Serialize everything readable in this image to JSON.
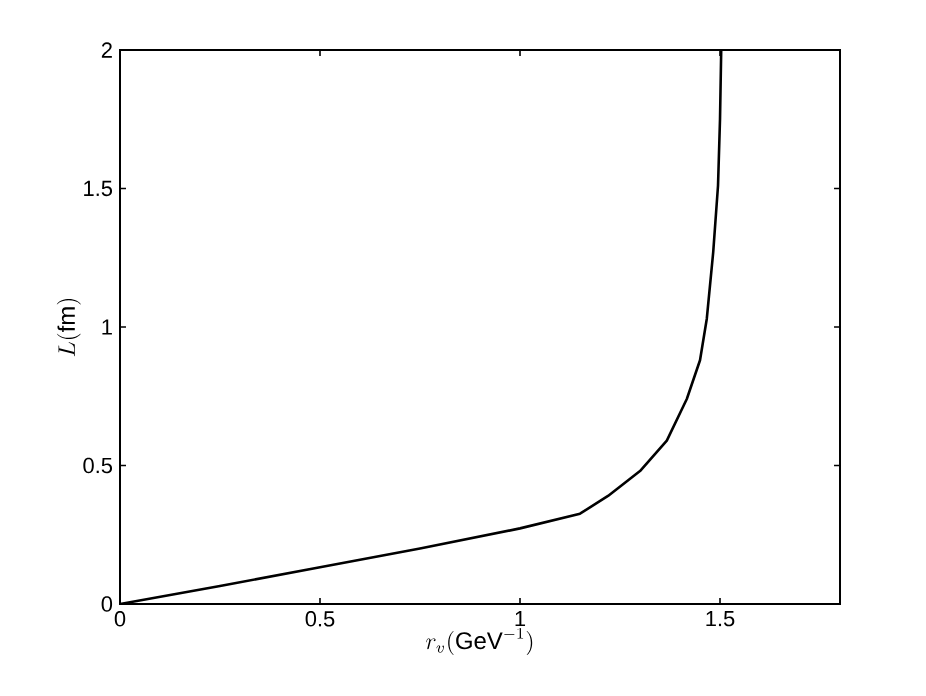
{
  "chart_data": {
    "type": "line",
    "xlabel": "r_v(\\mathrm{GeV}^{-1})",
    "ylabel": "L(\\mathrm{fm})",
    "color": "#000000",
    "x": [
      0,
      0.25,
      0.5,
      0.75,
      1,
      1.15,
      1.22,
      1.3,
      1.367,
      1.417,
      1.45,
      1.467,
      1.483,
      1.495,
      1.5,
      1.503
    ],
    "values": [
      0,
      0.065,
      0.133,
      0.2,
      0.273,
      0.326,
      0.39,
      0.48,
      0.59,
      0.74,
      0.88,
      1.03,
      1.27,
      1.51,
      1.75,
      2
    ],
    "xlim": [
      0,
      1.8
    ],
    "ylim": [
      0,
      2
    ],
    "xticks": [
      0,
      0.5,
      1,
      1.5
    ],
    "yticks": [
      0,
      0.5,
      1,
      1.5,
      2
    ],
    "marker": "none",
    "line_style": "solid"
  }
}
